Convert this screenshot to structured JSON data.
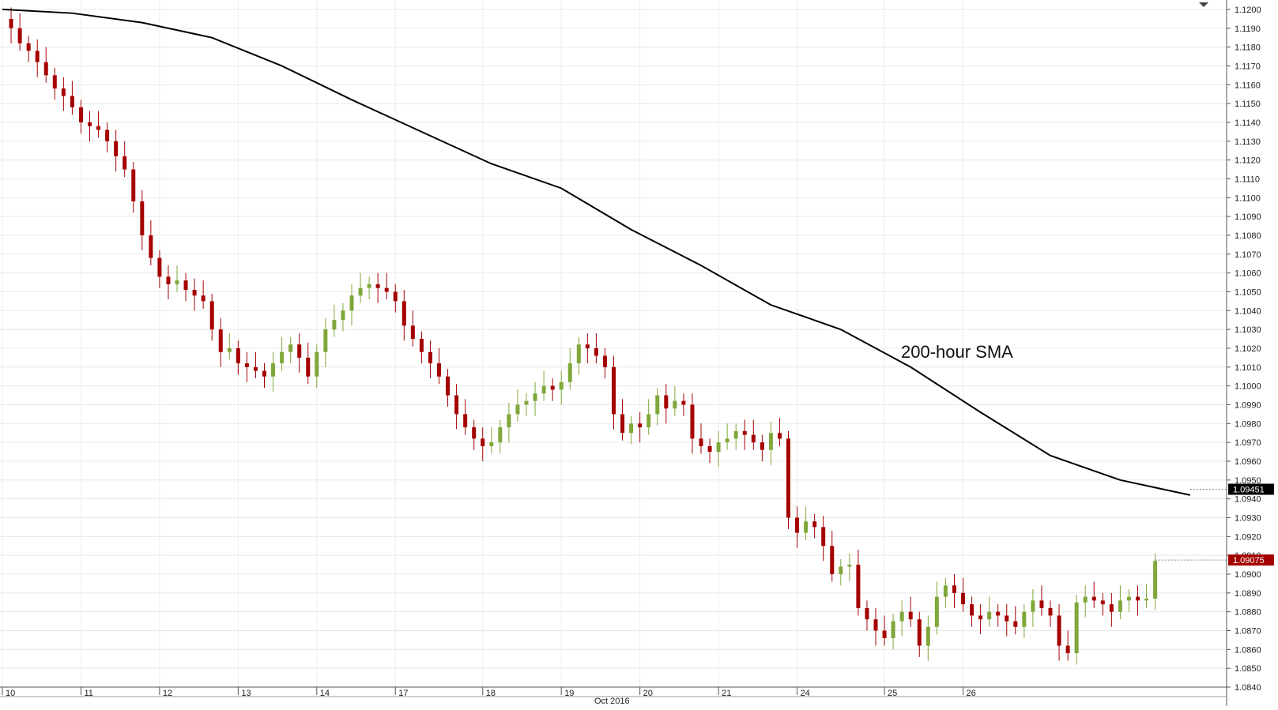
{
  "chart_data": {
    "type": "candlestick",
    "instrument": "",
    "interval": "1h",
    "annotation": "200-hour SMA",
    "x_period_label": "Oct 2016",
    "x_day_labels": [
      "10",
      "11",
      "12",
      "13",
      "14",
      "17",
      "18",
      "19",
      "20",
      "21",
      "24",
      "25",
      "26"
    ],
    "y_axis": {
      "ylim": [
        1.084,
        1.1205
      ],
      "tick_labels": [
        "1.0840",
        "1.0850",
        "1.0860",
        "1.0870",
        "1.0880",
        "1.0890",
        "1.0900",
        "1.0910",
        "1.0920",
        "1.0930",
        "1.0940",
        "1.0950",
        "1.0960",
        "1.0970",
        "1.0980",
        "1.0990",
        "1.1000",
        "1.1010",
        "1.1020",
        "1.1030",
        "1.1040",
        "1.1050",
        "1.1060",
        "1.1070",
        "1.1080",
        "1.1090",
        "1.1100",
        "1.1110",
        "1.1120",
        "1.1130",
        "1.1140",
        "1.1150",
        "1.1160",
        "1.1170",
        "1.1180",
        "1.1190",
        "1.1200"
      ]
    },
    "price_labels": [
      {
        "name": "sma",
        "text": "1.09451",
        "value": 1.09451,
        "color": "#000000"
      },
      {
        "name": "last",
        "text": "1.09075",
        "value": 1.09075,
        "color": "#a50000"
      }
    ],
    "colors": {
      "up": "#7fa73a",
      "down": "#a50000",
      "sma": "#000000",
      "background": "#ffffff"
    },
    "grid": true,
    "sma_200": [
      [
        0,
        1.12
      ],
      [
        8,
        1.1198
      ],
      [
        16,
        1.1193
      ],
      [
        24,
        1.1185
      ],
      [
        32,
        1.117
      ],
      [
        40,
        1.1152
      ],
      [
        48,
        1.1135
      ],
      [
        56,
        1.1118
      ],
      [
        64,
        1.1105
      ],
      [
        72,
        1.1083
      ],
      [
        80,
        1.1064
      ],
      [
        88,
        1.1043
      ],
      [
        96,
        1.103
      ],
      [
        104,
        1.101
      ],
      [
        112,
        1.0986
      ],
      [
        120,
        1.0963
      ],
      [
        128,
        1.095
      ],
      [
        136,
        1.0942
      ]
    ],
    "close_path": [
      [
        0,
        1.1195
      ],
      [
        1,
        1.119
      ],
      [
        2,
        1.1182
      ],
      [
        3,
        1.1178
      ],
      [
        4,
        1.1172
      ],
      [
        5,
        1.1165
      ],
      [
        6,
        1.1158
      ],
      [
        7,
        1.1154
      ],
      [
        8,
        1.1148
      ],
      [
        9,
        1.114
      ],
      [
        10,
        1.1138
      ],
      [
        11,
        1.1136
      ],
      [
        12,
        1.113
      ],
      [
        13,
        1.1122
      ],
      [
        14,
        1.1115
      ],
      [
        15,
        1.1098
      ],
      [
        16,
        1.108
      ],
      [
        17,
        1.1068
      ],
      [
        18,
        1.1058
      ],
      [
        19,
        1.1054
      ],
      [
        20,
        1.1056
      ],
      [
        21,
        1.1051
      ],
      [
        22,
        1.1048
      ],
      [
        23,
        1.1045
      ],
      [
        24,
        1.103
      ],
      [
        25,
        1.1018
      ],
      [
        26,
        1.102
      ],
      [
        27,
        1.1012
      ],
      [
        28,
        1.101
      ],
      [
        29,
        1.1008
      ],
      [
        30,
        1.1005
      ],
      [
        31,
        1.1012
      ],
      [
        32,
        1.1018
      ],
      [
        33,
        1.1022
      ],
      [
        34,
        1.1015
      ],
      [
        35,
        1.1005
      ],
      [
        36,
        1.1018
      ],
      [
        37,
        1.103
      ],
      [
        38,
        1.1035
      ],
      [
        39,
        1.104
      ],
      [
        40,
        1.1048
      ],
      [
        41,
        1.1052
      ],
      [
        42,
        1.1054
      ],
      [
        43,
        1.1052
      ],
      [
        44,
        1.105
      ],
      [
        45,
        1.1045
      ],
      [
        46,
        1.1032
      ],
      [
        47,
        1.1025
      ],
      [
        48,
        1.1018
      ],
      [
        49,
        1.1012
      ],
      [
        50,
        1.1005
      ],
      [
        51,
        1.0995
      ],
      [
        52,
        1.0985
      ],
      [
        53,
        1.0978
      ],
      [
        54,
        1.0972
      ],
      [
        55,
        1.0968
      ],
      [
        56,
        1.097
      ],
      [
        57,
        1.0978
      ],
      [
        58,
        1.0985
      ],
      [
        59,
        1.099
      ],
      [
        60,
        1.0992
      ],
      [
        61,
        1.0996
      ],
      [
        62,
        1.1
      ],
      [
        63,
        1.0998
      ],
      [
        64,
        1.1002
      ],
      [
        65,
        1.1012
      ],
      [
        66,
        1.1022
      ],
      [
        67,
        1.102
      ],
      [
        68,
        1.1016
      ],
      [
        69,
        1.101
      ],
      [
        70,
        1.0985
      ],
      [
        71,
        1.0975
      ],
      [
        72,
        1.098
      ],
      [
        73,
        1.0978
      ],
      [
        74,
        1.0985
      ],
      [
        75,
        1.0995
      ],
      [
        76,
        1.0988
      ],
      [
        77,
        1.0992
      ],
      [
        78,
        1.099
      ],
      [
        79,
        1.0972
      ],
      [
        80,
        1.0968
      ],
      [
        81,
        1.0965
      ],
      [
        82,
        1.097
      ],
      [
        83,
        1.0972
      ],
      [
        84,
        1.0976
      ],
      [
        85,
        1.0974
      ],
      [
        86,
        1.097
      ],
      [
        87,
        1.0966
      ],
      [
        88,
        1.0975
      ],
      [
        89,
        1.0972
      ],
      [
        90,
        1.093
      ],
      [
        91,
        1.0922
      ],
      [
        92,
        1.0928
      ],
      [
        93,
        1.0925
      ],
      [
        94,
        1.0915
      ],
      [
        95,
        1.09
      ],
      [
        96,
        1.0904
      ],
      [
        97,
        1.0905
      ],
      [
        98,
        1.0882
      ],
      [
        99,
        1.0876
      ],
      [
        100,
        1.087
      ],
      [
        101,
        1.0866
      ],
      [
        102,
        1.0875
      ],
      [
        103,
        1.088
      ],
      [
        104,
        1.0876
      ],
      [
        105,
        1.0862
      ],
      [
        106,
        1.0872
      ],
      [
        107,
        1.0888
      ],
      [
        108,
        1.0894
      ],
      [
        109,
        1.089
      ],
      [
        110,
        1.0884
      ],
      [
        111,
        1.0878
      ],
      [
        112,
        1.0876
      ],
      [
        113,
        1.088
      ],
      [
        114,
        1.0878
      ],
      [
        115,
        1.0875
      ],
      [
        116,
        1.0872
      ],
      [
        117,
        1.088
      ],
      [
        118,
        1.0886
      ],
      [
        119,
        1.0882
      ],
      [
        120,
        1.0878
      ],
      [
        121,
        1.0862
      ],
      [
        122,
        1.0858
      ],
      [
        123,
        1.0885
      ],
      [
        124,
        1.0888
      ],
      [
        125,
        1.0886
      ],
      [
        126,
        1.0884
      ],
      [
        127,
        1.088
      ],
      [
        128,
        1.0886
      ],
      [
        129,
        1.0888
      ],
      [
        130,
        1.0886
      ],
      [
        131,
        1.0887
      ],
      [
        132,
        1.0907
      ]
    ]
  }
}
